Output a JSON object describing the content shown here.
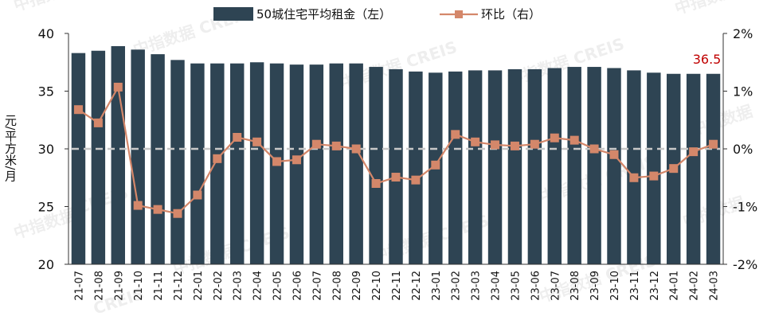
{
  "colors": {
    "bar": "#2e4453",
    "line": "#d4876a",
    "refline": "#c8c8c8",
    "annotation": "#c00000",
    "axis": "#333333"
  },
  "watermark": {
    "cn": "中指数据",
    "en": "CREIS",
    "combined": "中指数据 CREIS"
  },
  "chart_data": {
    "type": "bar",
    "categories": [
      "21-07",
      "21-08",
      "21-09",
      "21-10",
      "21-11",
      "21-12",
      "22-01",
      "22-02",
      "22-03",
      "22-04",
      "22-05",
      "22-06",
      "22-07",
      "22-08",
      "22-09",
      "22-10",
      "22-11",
      "22-12",
      "23-01",
      "23-02",
      "23-03",
      "23-04",
      "23-05",
      "23-06",
      "23-07",
      "23-08",
      "23-09",
      "23-10",
      "23-11",
      "23-12",
      "24-01",
      "24-02",
      "24-03"
    ],
    "series": [
      {
        "name": "50城住宅平均租金（左）",
        "type": "bar",
        "axis": "left",
        "values": [
          38.3,
          38.5,
          38.9,
          38.6,
          38.2,
          37.7,
          37.4,
          37.4,
          37.4,
          37.5,
          37.4,
          37.3,
          37.3,
          37.4,
          37.4,
          37.1,
          36.9,
          36.7,
          36.6,
          36.7,
          36.8,
          36.8,
          36.9,
          36.9,
          37.0,
          37.1,
          37.1,
          37.0,
          36.8,
          36.6,
          36.5,
          36.5,
          36.5
        ]
      },
      {
        "name": "环比（右）",
        "type": "line",
        "axis": "right",
        "values": [
          0.68,
          0.45,
          1.07,
          -0.98,
          -1.05,
          -1.12,
          -0.8,
          -0.17,
          0.2,
          0.12,
          -0.22,
          -0.19,
          0.08,
          0.05,
          0.0,
          -0.6,
          -0.49,
          -0.54,
          -0.28,
          0.25,
          0.12,
          0.07,
          0.05,
          0.08,
          0.19,
          0.15,
          0.0,
          -0.1,
          -0.5,
          -0.47,
          -0.34,
          -0.05,
          0.08
        ]
      }
    ],
    "left_axis": {
      "label": "元/平方米/月",
      "min": 20,
      "max": 40,
      "ticks": [
        "20",
        "25",
        "30",
        "35",
        "40"
      ]
    },
    "right_axis": {
      "min": -2,
      "max": 2,
      "ticks": [
        "-2%",
        "-1%",
        "0%",
        "1%",
        "2%"
      ]
    },
    "zero_reference_line": true,
    "annotation": {
      "text": "36.5",
      "category": "24-03"
    },
    "legend": {
      "position": "top-center"
    },
    "grid": false
  }
}
